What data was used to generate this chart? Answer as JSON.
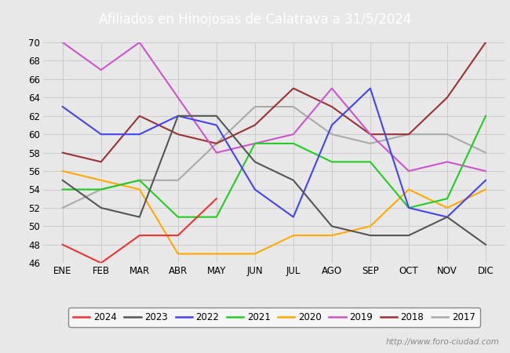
{
  "title": "Afiliados en Hinojosas de Calatrava a 31/5/2024",
  "title_bg_color": "#5b8dd9",
  "title_text_color": "#ffffff",
  "ylim": [
    46,
    70
  ],
  "yticks": [
    46,
    48,
    50,
    52,
    54,
    56,
    58,
    60,
    62,
    64,
    66,
    68,
    70
  ],
  "months": [
    "ENE",
    "FEB",
    "MAR",
    "ABR",
    "MAY",
    "JUN",
    "JUL",
    "AGO",
    "SEP",
    "OCT",
    "NOV",
    "DIC"
  ],
  "series": {
    "2024": {
      "color": "#ee3333",
      "data": [
        48,
        46,
        49,
        49,
        53,
        null,
        null,
        null,
        null,
        null,
        null,
        null
      ]
    },
    "2023": {
      "color": "#555555",
      "data": [
        55,
        52,
        51,
        62,
        62,
        57,
        55,
        50,
        49,
        49,
        51,
        48
      ]
    },
    "2022": {
      "color": "#4444ee",
      "data": [
        63,
        60,
        60,
        62,
        61,
        54,
        51,
        61,
        65,
        52,
        51,
        55
      ]
    },
    "2021": {
      "color": "#22cc22",
      "data": [
        54,
        54,
        55,
        51,
        51,
        59,
        59,
        57,
        57,
        52,
        53,
        62
      ]
    },
    "2020": {
      "color": "#ffaa00",
      "data": [
        56,
        55,
        54,
        47,
        47,
        47,
        49,
        49,
        50,
        54,
        52,
        54
      ]
    },
    "2019": {
      "color": "#cc55cc",
      "data": [
        70,
        67,
        70,
        64,
        58,
        59,
        60,
        65,
        60,
        56,
        57,
        56
      ]
    },
    "2018": {
      "color": "#993333",
      "data": [
        58,
        57,
        62,
        60,
        59,
        61,
        65,
        63,
        60,
        60,
        64,
        70
      ]
    },
    "2017": {
      "color": "#aaaaaa",
      "data": [
        52,
        54,
        55,
        55,
        59,
        63,
        63,
        60,
        59,
        60,
        60,
        58
      ]
    }
  },
  "legend_years": [
    "2024",
    "2023",
    "2022",
    "2021",
    "2020",
    "2019",
    "2018",
    "2017"
  ],
  "footer": "http://www.foro-ciudad.com",
  "bg_color": "#e8e8e8",
  "plot_bg_color": "#e8e8e8",
  "grid_color": "#cccccc"
}
